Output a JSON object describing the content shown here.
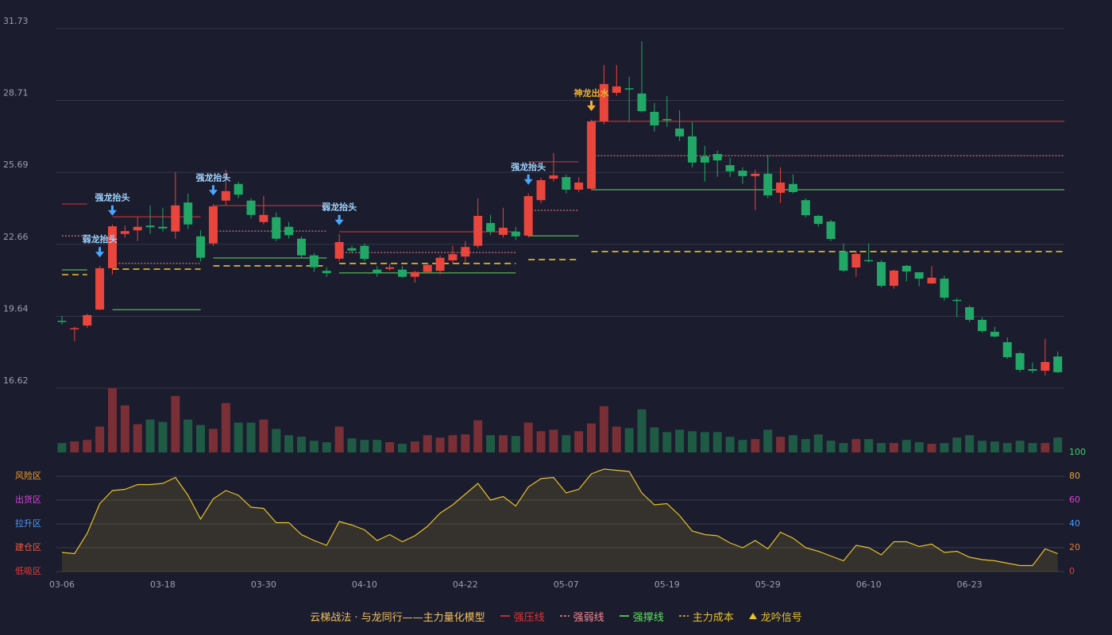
{
  "chart_data": [
    {
      "type": "candlestick",
      "categories": [
        "03-06",
        null,
        null,
        null,
        null,
        null,
        null,
        null,
        "03-18",
        null,
        null,
        null,
        null,
        null,
        null,
        null,
        "03-30",
        null,
        null,
        null,
        null,
        null,
        null,
        null,
        "04-10",
        null,
        null,
        null,
        null,
        null,
        null,
        null,
        "04-22",
        null,
        null,
        null,
        null,
        null,
        null,
        null,
        "05-07",
        null,
        null,
        null,
        null,
        null,
        null,
        null,
        "05-19",
        null,
        null,
        null,
        null,
        null,
        null,
        null,
        "05-29",
        null,
        null,
        null,
        null,
        null,
        null,
        null,
        "06-10",
        null,
        null,
        null,
        null,
        null,
        null,
        null,
        "06-23",
        null,
        null,
        null,
        null,
        null,
        null,
        null
      ],
      "open": [
        19.45,
        19.12,
        19.25,
        19.92,
        21.66,
        23.1,
        23.25,
        23.45,
        23.4,
        23.2,
        24.42,
        23.0,
        22.7,
        24.5,
        25.2,
        24.5,
        23.6,
        23.8,
        23.4,
        22.9,
        22.2,
        21.55,
        22.06,
        22.5,
        22.6,
        21.6,
        21.63,
        21.6,
        21.3,
        21.5,
        21.55,
        21.99,
        22.15,
        22.6,
        23.56,
        23.06,
        23.2,
        23.03,
        24.52,
        25.42,
        25.49,
        24.96,
        25.0,
        27.83,
        29.03,
        29.22,
        29.0,
        28.23,
        27.93,
        27.53,
        27.2,
        26.36,
        26.46,
        25.99,
        25.76,
        25.53,
        25.63,
        24.83,
        25.2,
        24.52,
        23.86,
        23.62,
        22.36,
        21.69,
        22.0,
        21.92,
        20.92,
        21.76,
        21.49,
        21.02,
        21.22,
        20.33,
        20.02,
        19.49,
        18.99,
        18.55,
        18.09,
        17.42,
        17.35,
        17.95
      ],
      "high": [
        19.65,
        19.2,
        19.75,
        21.75,
        23.5,
        23.45,
        23.8,
        24.3,
        24.2,
        25.7,
        24.8,
        23.25,
        24.35,
        25.8,
        25.3,
        24.6,
        24.7,
        24.0,
        23.6,
        23.0,
        22.3,
        21.7,
        23.1,
        22.6,
        22.7,
        21.75,
        21.85,
        21.75,
        21.55,
        21.9,
        22.2,
        22.6,
        22.8,
        24.6,
        23.9,
        24.2,
        23.4,
        24.8,
        25.45,
        26.5,
        25.6,
        25.5,
        27.9,
        30.2,
        30.2,
        29.7,
        31.2,
        28.6,
        28.9,
        28.3,
        27.8,
        26.8,
        26.6,
        26.3,
        25.9,
        25.8,
        26.4,
        25.9,
        25.6,
        24.6,
        23.9,
        23.7,
        22.7,
        22.4,
        22.7,
        22.0,
        21.6,
        21.8,
        21.5,
        21.75,
        21.35,
        20.4,
        20.1,
        19.6,
        19.2,
        18.75,
        18.15,
        17.7,
        18.7,
        18.15
      ],
      "low": [
        19.3,
        18.6,
        19.15,
        19.9,
        21.4,
        22.95,
        22.8,
        23.1,
        23.2,
        22.9,
        23.3,
        21.95,
        22.6,
        24.3,
        24.6,
        23.75,
        23.5,
        22.8,
        22.9,
        22.1,
        21.5,
        21.3,
        21.95,
        22.3,
        21.95,
        21.3,
        21.55,
        21.25,
        21.05,
        21.45,
        21.4,
        21.85,
        21.9,
        22.5,
        23.05,
        22.95,
        22.85,
        22.95,
        24.4,
        25.3,
        24.8,
        24.85,
        24.95,
        27.7,
        28.9,
        27.8,
        28.2,
        27.4,
        27.6,
        27.0,
        25.9,
        25.3,
        25.5,
        25.5,
        25.2,
        24.1,
        24.6,
        24.4,
        24.8,
        23.8,
        23.4,
        22.8,
        21.5,
        21.3,
        21.9,
        20.85,
        20.8,
        21.1,
        20.9,
        21.0,
        20.3,
        19.6,
        19.4,
        18.95,
        18.75,
        17.85,
        17.3,
        17.25,
        17.15,
        17.25
      ],
      "close": [
        19.4,
        19.14,
        19.69,
        21.66,
        23.42,
        23.22,
        23.4,
        23.38,
        23.33,
        24.3,
        23.5,
        22.1,
        24.26,
        24.9,
        24.75,
        23.9,
        23.9,
        22.9,
        23.05,
        22.2,
        21.7,
        21.45,
        22.76,
        22.4,
        22.05,
        21.45,
        21.7,
        21.3,
        21.5,
        21.8,
        22.1,
        22.25,
        22.55,
        23.86,
        23.19,
        23.36,
        23.0,
        24.69,
        25.36,
        25.56,
        24.96,
        25.26,
        27.83,
        29.4,
        29.3,
        29.18,
        28.26,
        27.66,
        27.87,
        27.2,
        26.1,
        26.1,
        26.19,
        25.73,
        25.53,
        25.63,
        24.72,
        25.26,
        24.86,
        23.89,
        23.52,
        22.89,
        21.56,
        22.26,
        21.95,
        20.92,
        21.56,
        21.52,
        21.22,
        21.26,
        20.42,
        20.3,
        19.49,
        19.02,
        18.79,
        17.92,
        17.39,
        17.35,
        17.72,
        17.29
      ],
      "up_color": "#e8453c",
      "down_color": "#22a866",
      "ylim": [
        16.62,
        31.73
      ],
      "yticks": [
        16.62,
        19.64,
        22.66,
        25.69,
        28.71,
        31.73
      ],
      "grid": true,
      "levels": [
        {
          "name": "强压线",
          "color": "#d9383a",
          "dash": "solid",
          "segments": [
            {
              "from": 0,
              "to": 2,
              "value": 24.36
            },
            {
              "from": 4,
              "to": 11,
              "value": 23.82
            },
            {
              "from": 12,
              "to": 21,
              "value": 24.29
            },
            {
              "from": 22,
              "to": 36,
              "value": 23.19
            },
            {
              "from": 37,
              "to": 41,
              "value": 26.13
            },
            {
              "from": 42,
              "to": 79,
              "value": 27.83
            }
          ]
        },
        {
          "name": "强弱线",
          "color": "#f08a90",
          "dash": "dotted",
          "segments": [
            {
              "from": 0,
              "to": 2,
              "value": 23.02
            },
            {
              "from": 4,
              "to": 11,
              "value": 21.86
            },
            {
              "from": 12,
              "to": 21,
              "value": 23.22
            },
            {
              "from": 22,
              "to": 36,
              "value": 22.32
            },
            {
              "from": 37,
              "to": 41,
              "value": 24.09
            },
            {
              "from": 42,
              "to": 79,
              "value": 26.39
            }
          ]
        },
        {
          "name": "强撑线",
          "color": "#5fe05f",
          "dash": "solid",
          "segments": [
            {
              "from": 0,
              "to": 2,
              "value": 21.59
            },
            {
              "from": 4,
              "to": 11,
              "value": 19.92
            },
            {
              "from": 12,
              "to": 21,
              "value": 22.09
            },
            {
              "from": 22,
              "to": 36,
              "value": 21.46
            },
            {
              "from": 37,
              "to": 41,
              "value": 23.02
            },
            {
              "from": 42,
              "to": 79,
              "value": 24.96
            }
          ]
        },
        {
          "name": "主力成本",
          "color": "#e6c229",
          "dash": "dashed",
          "segments": [
            {
              "from": 0,
              "to": 2,
              "value": 21.39
            },
            {
              "from": 4,
              "to": 11,
              "value": 21.62
            },
            {
              "from": 12,
              "to": 21,
              "value": 21.76
            },
            {
              "from": 22,
              "to": 36,
              "value": 21.86
            },
            {
              "from": 37,
              "to": 41,
              "value": 22.02
            },
            {
              "from": 42,
              "to": 79,
              "value": 22.36
            }
          ]
        }
      ],
      "signals": [
        {
          "label": "弱龙抬头",
          "index": 3,
          "color": "#4aa8ff"
        },
        {
          "label": "强龙抬头",
          "index": 4,
          "color": "#4aa8ff"
        },
        {
          "label": "强龙抬头",
          "index": 12,
          "color": "#4aa8ff"
        },
        {
          "label": "弱龙抬头",
          "index": 22,
          "color": "#4aa8ff"
        },
        {
          "label": "强龙抬头",
          "index": 37,
          "color": "#4aa8ff"
        },
        {
          "label": "神龙出水",
          "index": 42,
          "color": "#f0b030"
        }
      ],
      "legend_title": "云梯战法 · 与龙同行——主力量化模型",
      "signal_legend": "龙吟信号",
      "signal_legend_color": "#e6c229"
    },
    {
      "type": "bar",
      "values": [
        12,
        14,
        16,
        33,
        82,
        60,
        36,
        42,
        39,
        72,
        42,
        35,
        30,
        63,
        38,
        38,
        42,
        30,
        22,
        20,
        15,
        13,
        33,
        18,
        16,
        16,
        13,
        11,
        14,
        22,
        19,
        22,
        23,
        41,
        22,
        22,
        21,
        38,
        27,
        29,
        22,
        27,
        37,
        59,
        33,
        31,
        55,
        32,
        26,
        29,
        27,
        26,
        26,
        20,
        16,
        17,
        29,
        20,
        22,
        17,
        23,
        15,
        12,
        17,
        17,
        12,
        12,
        16,
        13,
        11,
        12,
        19,
        22,
        15,
        14,
        12,
        15,
        12,
        12,
        19
      ],
      "up_color": "#7a2f36",
      "down_color": "#1f5a45",
      "ylim": [
        0,
        82
      ]
    },
    {
      "type": "area",
      "values": [
        16,
        15,
        32,
        57,
        68,
        69,
        73,
        73,
        74,
        79,
        64,
        44,
        61,
        68,
        64,
        54,
        53,
        41,
        41,
        31,
        26,
        22,
        42,
        39,
        35,
        26,
        31,
        25,
        30,
        38,
        49,
        56,
        65,
        74,
        60,
        63,
        55,
        71,
        78,
        79,
        66,
        69,
        82,
        86,
        85,
        84,
        66,
        56,
        57,
        47,
        34,
        31,
        30,
        24,
        20,
        26,
        19,
        33,
        28,
        20,
        17,
        13,
        9,
        22,
        20,
        14,
        25,
        25,
        21,
        23,
        16,
        17,
        12,
        10,
        9,
        7,
        5,
        5,
        19,
        15
      ],
      "color": "#e6c229",
      "ylim": [
        0,
        100
      ],
      "yticks": [
        0,
        20,
        40,
        60,
        80,
        100
      ],
      "ytick_colors": [
        "#f03a3a",
        "#f07a30",
        "#4a9cff",
        "#e040e0",
        "#f0a030",
        "#3fd06a"
      ],
      "zones": [
        "低吸区",
        "建仓区",
        "拉升区",
        "出货区",
        "风险区"
      ],
      "zone_colors": [
        "#f03a3a",
        "#f05a40",
        "#4a9cff",
        "#e040e0",
        "#f0a030"
      ],
      "grid": true
    }
  ]
}
